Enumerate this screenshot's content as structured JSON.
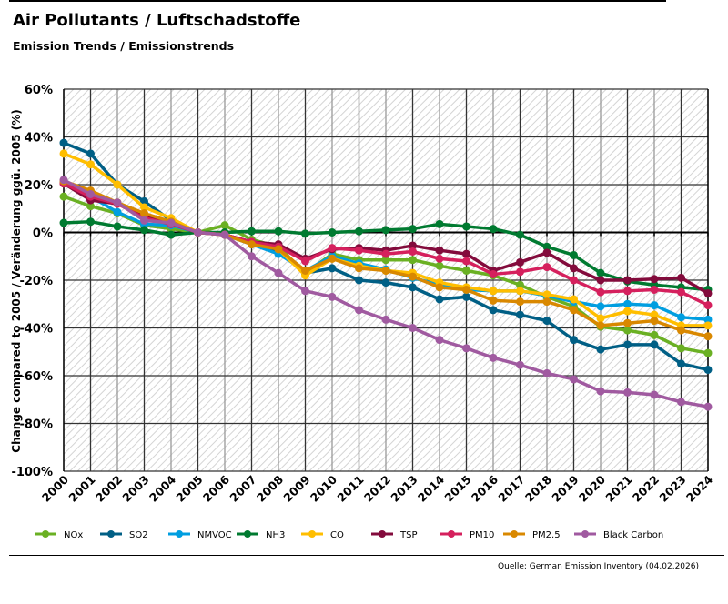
{
  "header": {
    "title": "Air Pollutants / Luftschadstoffe",
    "subtitle": "Emission Trends / Emissionstrends"
  },
  "footer": {
    "source": "Quelle: German Emission Inventory (04.02.2026)"
  },
  "chart_data": {
    "type": "line",
    "title": "Air Pollutants / Luftschadstoffe",
    "subtitle": "Emission Trends / Emissionstrends",
    "xlabel": "",
    "ylabel": "Change compared to 2005 / Veränderung ggü. 2005 (%)",
    "ylim": [
      -100,
      60
    ],
    "yticks": [
      60,
      40,
      20,
      0,
      -20,
      -40,
      -60,
      -80,
      -100
    ],
    "ytick_labels": [
      "60%",
      "40%",
      "20%",
      "0%",
      "-20%",
      "-40%",
      "-60%",
      "-80%",
      "-100%"
    ],
    "grid": true,
    "legend_position": "bottom",
    "x": [
      "2000",
      "2001",
      "2002",
      "2003",
      "2004",
      "2005",
      "2006",
      "2007",
      "2008",
      "2009",
      "2010",
      "2011",
      "2012",
      "2013",
      "2014",
      "2015",
      "2016",
      "2017",
      "2018",
      "2019",
      "2020",
      "2021",
      "2022",
      "2023",
      "2024"
    ],
    "series": [
      {
        "name": "NOx",
        "color": "#6ab023",
        "values": [
          15,
          11,
          8,
          3,
          1.5,
          0,
          3,
          -3,
          -6,
          -17,
          -9,
          -11.5,
          -11.5,
          -11.5,
          -14,
          -16,
          -18,
          -22,
          -27,
          -31,
          -39.5,
          -41,
          -43,
          -48.5,
          -50.5
        ]
      },
      {
        "name": "SO2",
        "color": "#005f85",
        "values": [
          37.5,
          33,
          20,
          13,
          5,
          0,
          -1,
          -4,
          -8,
          -17,
          -15,
          -20,
          -21,
          -23,
          -28,
          -27,
          -32.5,
          -34.5,
          -37,
          -45,
          -49,
          -47,
          -47,
          -55,
          -57.5
        ]
      },
      {
        "name": "NMVOC",
        "color": "#009ee0",
        "values": [
          21,
          15,
          8.5,
          3.5,
          3,
          0,
          -1,
          -5,
          -9,
          -16,
          -10,
          -13,
          -15.5,
          -19,
          -22,
          -24,
          -24.5,
          -24.5,
          -26.5,
          -29,
          -31,
          -30,
          -30.5,
          -35.5,
          -36.5
        ]
      },
      {
        "name": "NH3",
        "color": "#007a30",
        "values": [
          4,
          4.5,
          2.5,
          1,
          -1,
          0,
          0,
          0.5,
          0.5,
          -0.5,
          0,
          0.5,
          1,
          1.5,
          3.5,
          2.5,
          1.5,
          -1,
          -6,
          -9.5,
          -17,
          -20.5,
          -22,
          -23,
          -24
        ]
      },
      {
        "name": "CO",
        "color": "#ffbe00",
        "values": [
          33,
          28.5,
          20,
          10.5,
          6,
          0,
          -1,
          -4,
          -7,
          -18,
          -11,
          -14,
          -16,
          -17,
          -21,
          -23,
          -24.5,
          -24.5,
          -26,
          -28,
          -36,
          -33,
          -34.5,
          -39,
          -39
        ]
      },
      {
        "name": "TSP",
        "color": "#830b3c",
        "values": [
          20.5,
          13.5,
          12,
          7,
          4,
          0,
          -1,
          -4,
          -5,
          -11,
          -7,
          -6.5,
          -7.5,
          -5.5,
          -7.5,
          -9,
          -16,
          -12.5,
          -8.5,
          -15,
          -20,
          -20,
          -19.5,
          -19,
          -25.5
        ]
      },
      {
        "name": "PM10",
        "color": "#d5205d",
        "values": [
          20.5,
          15,
          12,
          6,
          3.5,
          0,
          -1,
          -4,
          -6,
          -12,
          -6.5,
          -7.5,
          -9,
          -8,
          -11,
          -12,
          -17.5,
          -16.5,
          -14.5,
          -20,
          -25,
          -24.5,
          -24,
          -25,
          -30.5
        ]
      },
      {
        "name": "PM2.5",
        "color": "#d98800",
        "values": [
          21.5,
          17.5,
          12.5,
          8,
          4.5,
          0,
          -1,
          -5,
          -7,
          -16,
          -11,
          -15,
          -16,
          -18.5,
          -23,
          -24,
          -28.5,
          -29,
          -29,
          -32.5,
          -39,
          -38,
          -37,
          -41,
          -43.5
        ]
      },
      {
        "name": "Black Carbon",
        "color": "#a05aa0",
        "values": [
          22,
          16,
          12.5,
          5,
          4,
          0,
          -1,
          -10,
          -17,
          -24.5,
          -27,
          -32.5,
          -36.5,
          -40,
          -45,
          -48.5,
          -52.5,
          -55.5,
          -59,
          -61.5,
          -66.5,
          -67,
          -68,
          -71,
          -73
        ]
      }
    ]
  }
}
